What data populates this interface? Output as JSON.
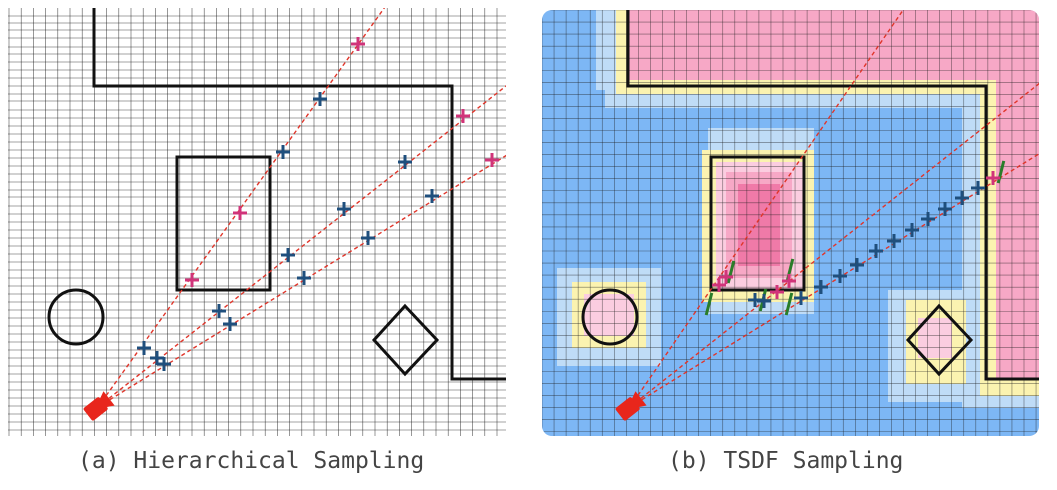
{
  "captions": {
    "a": "(a) Hierarchical Sampling",
    "b": "(b) TSDF Sampling"
  },
  "colors": {
    "grid_line": "#1a1a1a",
    "wall": "#111111",
    "ray": "#e0352a",
    "camera": "#e8261c",
    "coarse_sample": "#d0347a",
    "fine_sample": "#1f4f7d",
    "surface_tick": "#2a7d2a",
    "free_space": "#7db7f5",
    "near_free": "#bfdcf7",
    "surface_band": "#fbf3b0",
    "occupied_light": "#fbcde0",
    "occupied": "#f7a8c6",
    "occupied_deep": "#f07aa8"
  },
  "icons": [
    "camera-icon",
    "coarse-sample-marker",
    "fine-sample-marker",
    "surface-tick-marker"
  ]
}
